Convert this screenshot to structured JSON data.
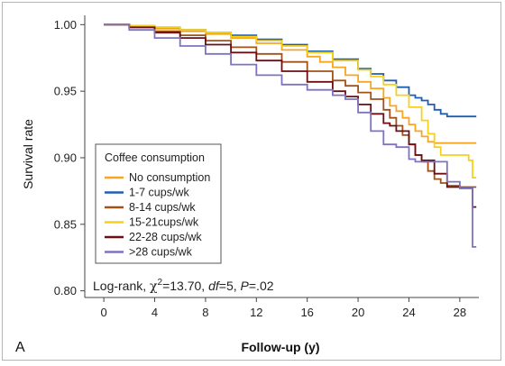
{
  "panel_label": "A",
  "chart_data": {
    "type": "line",
    "title": "",
    "xlabel": "Follow-up (y)",
    "ylabel": "Survival rate",
    "xlim": [
      -1.5,
      29.5
    ],
    "ylim": [
      0.795,
      1.007
    ],
    "xticks": [
      0,
      4,
      8,
      12,
      16,
      20,
      24,
      28
    ],
    "xtick_labels": [
      "0",
      "4",
      "8",
      "12",
      "16",
      "20",
      "24",
      "28"
    ],
    "yticks": [
      0.8,
      0.85,
      0.9,
      0.95,
      1.0
    ],
    "ytick_labels": [
      "0.80",
      "0.85",
      "0.90",
      "0.95",
      "1.00"
    ],
    "grid": false,
    "legend": {
      "title": "Coffee consumption",
      "placement": "lower-left"
    },
    "annotation": {
      "prefix": "Log-rank, ",
      "chi": "χ",
      "sup": "2",
      "chi_value": "=13.70, ",
      "df_label": "df",
      "df_value": "=5, ",
      "p_label": "P",
      "p_value": "=.02"
    },
    "series": [
      {
        "name": "No consumption",
        "color": "#F5A623",
        "x": [
          0,
          2,
          4,
          6,
          8,
          10,
          12,
          14,
          16,
          17,
          18,
          19,
          20,
          21,
          22,
          22.5,
          23,
          23.5,
          24,
          24.5,
          25,
          25.5,
          26,
          26.5,
          27,
          28,
          29.3
        ],
        "y": [
          1.0,
          0.999,
          0.997,
          0.995,
          0.993,
          0.99,
          0.986,
          0.981,
          0.976,
          0.972,
          0.968,
          0.962,
          0.957,
          0.952,
          0.945,
          0.939,
          0.935,
          0.93,
          0.925,
          0.92,
          0.916,
          0.912,
          0.911,
          0.911,
          0.911,
          0.911,
          0.911
        ]
      },
      {
        "name": "1-7 cups/wk",
        "color": "#1F5FAF",
        "x": [
          0,
          2,
          4,
          6,
          8,
          10,
          12,
          14,
          16,
          18,
          20,
          21,
          22,
          23,
          24,
          24.5,
          25,
          25.5,
          26,
          26.5,
          27,
          28,
          29.3
        ],
        "y": [
          1.0,
          0.999,
          0.998,
          0.996,
          0.994,
          0.992,
          0.989,
          0.985,
          0.98,
          0.974,
          0.967,
          0.963,
          0.958,
          0.953,
          0.947,
          0.945,
          0.943,
          0.94,
          0.936,
          0.933,
          0.931,
          0.931,
          0.931
        ]
      },
      {
        "name": "8-14 cups/wk",
        "color": "#A0521A",
        "x": [
          0,
          2,
          4,
          6,
          8,
          10,
          12,
          14,
          16,
          18,
          19,
          20,
          21,
          22,
          22.5,
          23,
          23.5,
          24,
          24.5,
          25,
          25.5,
          26,
          26.5,
          27,
          28,
          29.3
        ],
        "y": [
          1.0,
          0.998,
          0.995,
          0.992,
          0.988,
          0.983,
          0.978,
          0.972,
          0.965,
          0.958,
          0.954,
          0.949,
          0.944,
          0.936,
          0.93,
          0.924,
          0.917,
          0.91,
          0.902,
          0.897,
          0.89,
          0.884,
          0.881,
          0.879,
          0.878,
          0.878
        ]
      },
      {
        "name": "15-21cups/wk",
        "color": "#F7D117",
        "x": [
          0,
          2,
          4,
          6,
          8,
          10,
          12,
          14,
          16,
          18,
          20,
          21,
          22,
          23,
          24,
          25,
          25.5,
          26,
          26.5,
          27,
          28,
          28.7,
          29,
          29.3
        ],
        "y": [
          1.0,
          0.999,
          0.998,
          0.996,
          0.994,
          0.991,
          0.988,
          0.984,
          0.979,
          0.973,
          0.966,
          0.961,
          0.955,
          0.947,
          0.938,
          0.928,
          0.918,
          0.908,
          0.902,
          0.902,
          0.902,
          0.898,
          0.885,
          0.885
        ]
      },
      {
        "name": "22-28 cups/wk",
        "color": "#6B0F14",
        "x": [
          0,
          2,
          4,
          6,
          8,
          10,
          12,
          14,
          16,
          18,
          19,
          20,
          21,
          22,
          22.5,
          23,
          24,
          24.5,
          25,
          25.5,
          26,
          27,
          28,
          29,
          29.3
        ],
        "y": [
          1.0,
          0.998,
          0.994,
          0.99,
          0.985,
          0.979,
          0.973,
          0.965,
          0.957,
          0.95,
          0.946,
          0.94,
          0.933,
          0.926,
          0.924,
          0.92,
          0.91,
          0.902,
          0.898,
          0.898,
          0.888,
          0.878,
          0.877,
          0.863,
          0.863
        ]
      },
      {
        "name": ">28 cups/wk",
        "color": "#7E73C2",
        "x": [
          0,
          2,
          4,
          6,
          8,
          10,
          12,
          14,
          16,
          18,
          19,
          20,
          21,
          22,
          23,
          24,
          24.5,
          25,
          26,
          27,
          28,
          29,
          29.3
        ],
        "y": [
          1.0,
          0.996,
          0.99,
          0.984,
          0.978,
          0.97,
          0.962,
          0.955,
          0.951,
          0.947,
          0.944,
          0.934,
          0.92,
          0.91,
          0.908,
          0.899,
          0.897,
          0.897,
          0.897,
          0.882,
          0.877,
          0.833,
          0.833
        ]
      }
    ]
  }
}
